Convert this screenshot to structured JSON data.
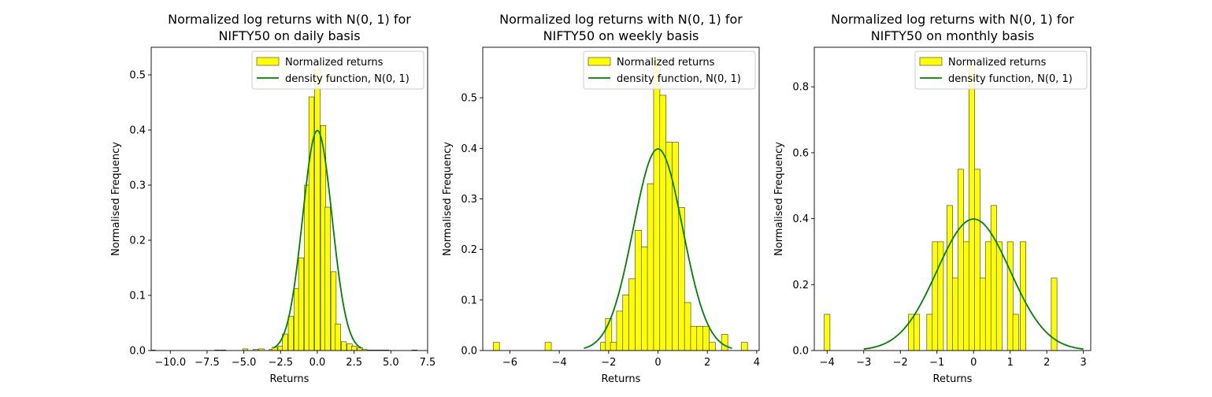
{
  "chart_data": [
    {
      "type": "histogram",
      "title_line1": "Normalized log returns with N(0, 1) for",
      "title_line2": "NIFTY50 on daily basis",
      "xlabel": "Returns",
      "ylabel": "Normalised Frequency",
      "xlim": [
        -11.3,
        7.5
      ],
      "ylim": [
        0,
        0.55
      ],
      "xticks": [
        -10.0,
        -7.5,
        -5.0,
        -2.5,
        0.0,
        2.5,
        5.0,
        7.5
      ],
      "xtick_labels": [
        "−10.0",
        "−7.5",
        "−5.0",
        "−2.5",
        "0.0",
        "2.5",
        "5.0",
        "7.5"
      ],
      "yticks": [
        0.0,
        0.1,
        0.2,
        0.3,
        0.4,
        0.5
      ],
      "ytick_labels": [
        "0.0",
        "0.1",
        "0.2",
        "0.3",
        "0.4",
        "0.5"
      ],
      "grid": false,
      "legend_position": "top-right",
      "legend": [
        "Normalized returns",
        "density function, N(0, 1)"
      ],
      "bar_color": "#ffff00",
      "line_color": "#008000",
      "bin_width": 0.357,
      "pdf_range": [
        -3,
        3
      ],
      "bins": [
        {
          "x": -11.2,
          "y": 0.001
        },
        {
          "x": -6.8,
          "y": 0.001
        },
        {
          "x": -6.4,
          "y": 0.001
        },
        {
          "x": -4.9,
          "y": 0.003
        },
        {
          "x": -4.2,
          "y": 0.002
        },
        {
          "x": -3.8,
          "y": 0.003
        },
        {
          "x": -3.1,
          "y": 0.002
        },
        {
          "x": -2.9,
          "y": 0.006
        },
        {
          "x": -2.5,
          "y": 0.008
        },
        {
          "x": -2.2,
          "y": 0.03
        },
        {
          "x": -1.8,
          "y": 0.062
        },
        {
          "x": -1.4,
          "y": 0.112
        },
        {
          "x": -1.1,
          "y": 0.168
        },
        {
          "x": -0.7,
          "y": 0.3
        },
        {
          "x": -0.4,
          "y": 0.46
        },
        {
          "x": 0.0,
          "y": 0.51
        },
        {
          "x": 0.4,
          "y": 0.408
        },
        {
          "x": 0.7,
          "y": 0.26
        },
        {
          "x": 1.1,
          "y": 0.143
        },
        {
          "x": 1.4,
          "y": 0.048
        },
        {
          "x": 1.8,
          "y": 0.016
        },
        {
          "x": 2.2,
          "y": 0.012
        },
        {
          "x": 2.5,
          "y": 0.008
        },
        {
          "x": 2.9,
          "y": 0.005
        },
        {
          "x": 3.2,
          "y": 0.002
        },
        {
          "x": 3.6,
          "y": 0.001
        },
        {
          "x": 4.0,
          "y": 0.001
        },
        {
          "x": 4.3,
          "y": 0.001
        },
        {
          "x": 4.7,
          "y": 0.001
        },
        {
          "x": 6.6,
          "y": 0.001
        }
      ]
    },
    {
      "type": "histogram",
      "title_line1": "Normalized log returns with N(0, 1) for",
      "title_line2": "NIFTY50 on weekly basis",
      "xlabel": "Returns",
      "ylabel": "Normalised Frequency",
      "xlim": [
        -7.1,
        4.1
      ],
      "ylim": [
        0,
        0.6
      ],
      "xticks": [
        -6,
        -4,
        -2,
        0,
        2,
        4
      ],
      "xtick_labels": [
        "−6",
        "−4",
        "−2",
        "0",
        "2",
        "4"
      ],
      "yticks": [
        0.0,
        0.1,
        0.2,
        0.3,
        0.4,
        0.5
      ],
      "ytick_labels": [
        "0.0",
        "0.1",
        "0.2",
        "0.3",
        "0.4",
        "0.5"
      ],
      "grid": false,
      "legend_position": "top-right",
      "legend": [
        "Normalized returns",
        "density function, N(0, 1)"
      ],
      "bar_color": "#ffff00",
      "line_color": "#008000",
      "bin_width": 0.255,
      "pdf_range": [
        -3,
        3
      ],
      "bins": [
        {
          "x": -6.55,
          "y": 0.016
        },
        {
          "x": -4.45,
          "y": 0.016
        },
        {
          "x": -2.2,
          "y": 0.016
        },
        {
          "x": -2.0,
          "y": 0.063
        },
        {
          "x": -1.8,
          "y": 0.016
        },
        {
          "x": -1.55,
          "y": 0.078
        },
        {
          "x": -1.3,
          "y": 0.11
        },
        {
          "x": -1.05,
          "y": 0.142
        },
        {
          "x": -0.8,
          "y": 0.238
        },
        {
          "x": -0.55,
          "y": 0.205
        },
        {
          "x": -0.3,
          "y": 0.33
        },
        {
          "x": -0.05,
          "y": 0.58
        },
        {
          "x": 0.2,
          "y": 0.505
        },
        {
          "x": 0.45,
          "y": 0.412
        },
        {
          "x": 0.7,
          "y": 0.412
        },
        {
          "x": 0.95,
          "y": 0.283
        },
        {
          "x": 1.2,
          "y": 0.095
        },
        {
          "x": 1.45,
          "y": 0.048
        },
        {
          "x": 1.7,
          "y": 0.048
        },
        {
          "x": 1.95,
          "y": 0.048
        },
        {
          "x": 2.2,
          "y": 0.016
        },
        {
          "x": 2.7,
          "y": 0.032
        },
        {
          "x": 3.5,
          "y": 0.016
        }
      ]
    },
    {
      "type": "histogram",
      "title_line1": "Normalized log returns with N(0, 1) for",
      "title_line2": "NIFTY50 on monthly basis",
      "xlabel": "Returns",
      "ylabel": "Normalised Frequency",
      "xlim": [
        -4.35,
        3.2
      ],
      "ylim": [
        0,
        0.92
      ],
      "xticks": [
        -4,
        -3,
        -2,
        -1,
        0,
        1,
        2,
        3
      ],
      "xtick_labels": [
        "−4",
        "−3",
        "−2",
        "−1",
        "0",
        "1",
        "2",
        "3"
      ],
      "yticks": [
        0.0,
        0.2,
        0.4,
        0.6,
        0.8
      ],
      "ytick_labels": [
        "0.0",
        "0.2",
        "0.4",
        "0.6",
        "0.8"
      ],
      "grid": false,
      "legend_position": "top-right",
      "legend": [
        "Normalized returns",
        "density function, N(0, 1)"
      ],
      "bar_color": "#ffff00",
      "line_color": "#008000",
      "bin_width": 0.155,
      "pdf_range": [
        -3,
        3
      ],
      "bins": [
        {
          "x": -4.0,
          "y": 0.11
        },
        {
          "x": -1.7,
          "y": 0.11
        },
        {
          "x": -1.55,
          "y": 0.11
        },
        {
          "x": -1.2,
          "y": 0.11
        },
        {
          "x": -1.05,
          "y": 0.33
        },
        {
          "x": -0.9,
          "y": 0.33
        },
        {
          "x": -0.65,
          "y": 0.44
        },
        {
          "x": -0.5,
          "y": 0.22
        },
        {
          "x": -0.35,
          "y": 0.55
        },
        {
          "x": -0.2,
          "y": 0.33
        },
        {
          "x": -0.05,
          "y": 0.87
        },
        {
          "x": 0.1,
          "y": 0.55
        },
        {
          "x": 0.25,
          "y": 0.22
        },
        {
          "x": 0.4,
          "y": 0.33
        },
        {
          "x": 0.55,
          "y": 0.44
        },
        {
          "x": 0.7,
          "y": 0.33
        },
        {
          "x": 1.0,
          "y": 0.33
        },
        {
          "x": 1.15,
          "y": 0.11
        },
        {
          "x": 1.35,
          "y": 0.33
        },
        {
          "x": 2.2,
          "y": 0.22
        }
      ]
    }
  ]
}
